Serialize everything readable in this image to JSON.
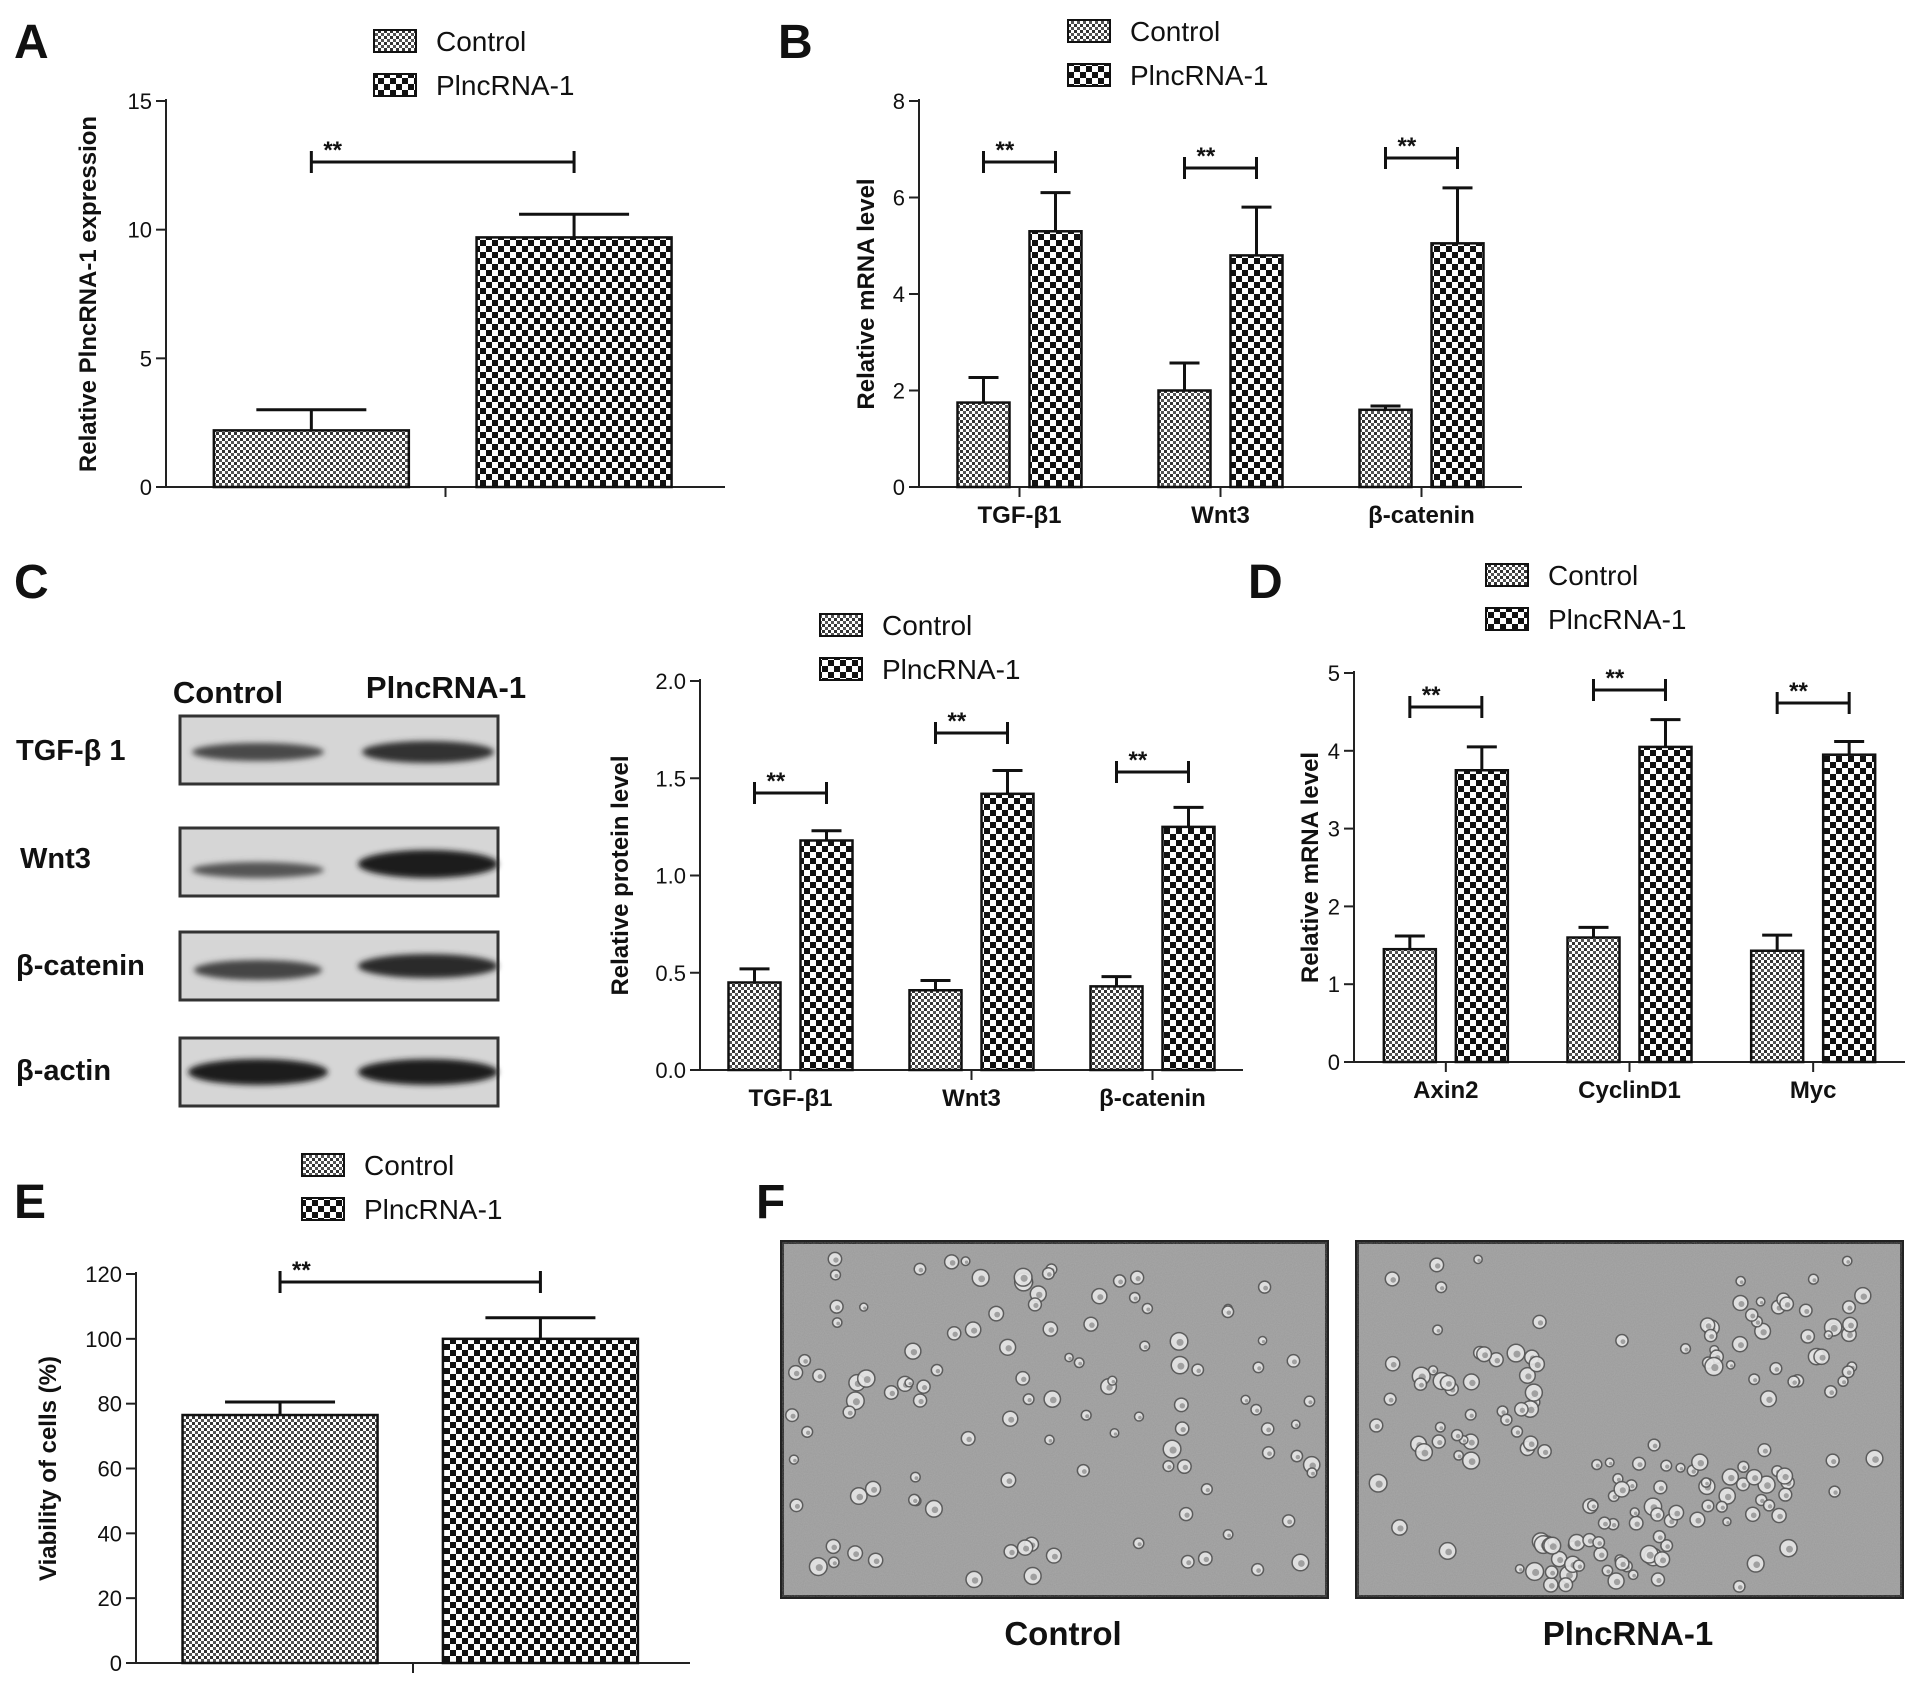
{
  "panel_letters": [
    "A",
    "B",
    "C",
    "D",
    "E",
    "F"
  ],
  "legend": {
    "control": "Control",
    "treated": "PlncRNA-1"
  },
  "significance": "**",
  "chart_data": [
    {
      "panel": "A",
      "type": "bar",
      "title": "",
      "xlabel": "",
      "ylabel": "Relative PlncRNA-1 expression",
      "ylim": [
        0,
        15
      ],
      "yticks": [
        "0",
        "5",
        "10",
        "15"
      ],
      "categories": [
        ""
      ],
      "series": [
        {
          "name": "Control",
          "values": [
            2.2
          ],
          "errors": [
            0.8
          ]
        },
        {
          "name": "PlncRNA-1",
          "values": [
            9.7
          ],
          "errors": [
            0.9
          ]
        }
      ],
      "legend_position": "top"
    },
    {
      "panel": "B",
      "type": "bar",
      "title": "",
      "xlabel": "",
      "ylabel": "Relative mRNA level",
      "ylim": [
        0,
        8
      ],
      "yticks": [
        "0",
        "2",
        "4",
        "6",
        "8"
      ],
      "categories": [
        "TGF-β1",
        "Wnt3",
        "β-catenin"
      ],
      "series": [
        {
          "name": "Control",
          "values": [
            1.75,
            2.0,
            1.6
          ],
          "errors": [
            0.52,
            0.57,
            0.08
          ]
        },
        {
          "name": "PlncRNA-1",
          "values": [
            5.3,
            4.8,
            5.05
          ],
          "errors": [
            0.8,
            1.0,
            1.15
          ]
        }
      ],
      "legend_position": "top"
    },
    {
      "panel": "C",
      "type": "bar",
      "title": "",
      "xlabel": "",
      "ylabel": "Relative protein level",
      "ylim": [
        0,
        2.0
      ],
      "yticks": [
        "0.0",
        "0.5",
        "1.0",
        "1.5",
        "2.0"
      ],
      "categories": [
        "TGF-β1",
        "Wnt3",
        "β-catenin"
      ],
      "series": [
        {
          "name": "Control",
          "values": [
            0.45,
            0.41,
            0.43
          ],
          "errors": [
            0.07,
            0.05,
            0.05
          ]
        },
        {
          "name": "PlncRNA-1",
          "values": [
            1.18,
            1.42,
            1.25
          ],
          "errors": [
            0.05,
            0.12,
            0.1
          ]
        }
      ],
      "legend_position": "top"
    },
    {
      "panel": "D",
      "type": "bar",
      "title": "",
      "xlabel": "",
      "ylabel": "Relative mRNA level",
      "ylim": [
        0,
        5
      ],
      "yticks": [
        "0",
        "1",
        "2",
        "3",
        "4",
        "5"
      ],
      "categories": [
        "Axin2",
        "CyclinD1",
        "Myc"
      ],
      "series": [
        {
          "name": "Control",
          "values": [
            1.45,
            1.6,
            1.43
          ],
          "errors": [
            0.17,
            0.13,
            0.2
          ]
        },
        {
          "name": "PlncRNA-1",
          "values": [
            3.75,
            4.05,
            3.95
          ],
          "errors": [
            0.3,
            0.35,
            0.17
          ]
        }
      ],
      "legend_position": "top"
    },
    {
      "panel": "E",
      "type": "bar",
      "title": "",
      "xlabel": "",
      "ylabel": "Viability of cells (%)",
      "ylim": [
        0,
        120
      ],
      "yticks": [
        "0",
        "20",
        "40",
        "60",
        "80",
        "100",
        "120"
      ],
      "categories": [
        ""
      ],
      "series": [
        {
          "name": "Control",
          "values": [
            76.5
          ],
          "errors": [
            4
          ]
        },
        {
          "name": "PlncRNA-1",
          "values": [
            100
          ],
          "errors": [
            6.5
          ]
        }
      ],
      "legend_position": "top"
    }
  ],
  "blot": {
    "columns": [
      "Control",
      "PlncRNA-1"
    ],
    "rows": [
      "TGF-β 1",
      "Wnt3",
      "β-catenin",
      "β-actin"
    ]
  },
  "micrographs": {
    "labels": [
      "Control",
      "PlncRNA-1"
    ]
  }
}
